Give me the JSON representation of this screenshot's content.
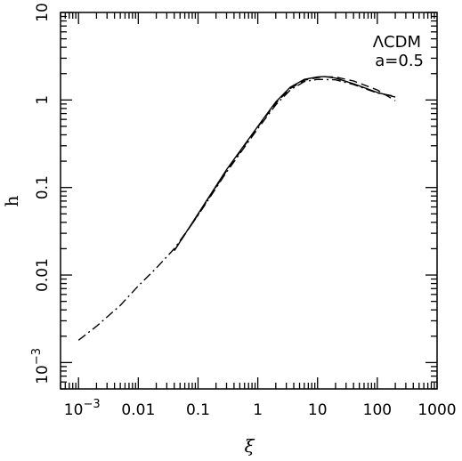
{
  "chart_data": {
    "type": "line",
    "title": "",
    "xlabel": "ξ",
    "ylabel": "h",
    "x_scale": "log",
    "y_scale": "log",
    "xlim": [
      0.0005,
      1000
    ],
    "ylim": [
      0.0005,
      10
    ],
    "grid": false,
    "legend": "none",
    "annotations": [
      "ΛCDM",
      "a=0.5"
    ],
    "x_ticks": [
      {
        "value": 0.001,
        "mantissa": "10",
        "exponent": "−3"
      },
      {
        "value": 0.01,
        "label": "0.01"
      },
      {
        "value": 0.1,
        "label": "0.1"
      },
      {
        "value": 1,
        "label": "1"
      },
      {
        "value": 10,
        "label": "10"
      },
      {
        "value": 100,
        "label": "100"
      },
      {
        "value": 1000,
        "label": "1000"
      }
    ],
    "y_ticks": [
      {
        "value": 0.001,
        "mantissa": "10",
        "exponent": "−3"
      },
      {
        "value": 0.01,
        "label": "0.01"
      },
      {
        "value": 0.1,
        "label": "0.1"
      },
      {
        "value": 1,
        "label": "1"
      },
      {
        "value": 10,
        "label": "10"
      }
    ],
    "series": [
      {
        "style": "solid",
        "x": [
          0.04,
          0.1,
          0.3,
          1,
          2,
          3.5,
          6,
          10,
          13,
          20,
          40,
          100,
          200
        ],
        "y": [
          0.019,
          0.05,
          0.16,
          0.5,
          0.95,
          1.4,
          1.72,
          1.83,
          1.85,
          1.78,
          1.53,
          1.22,
          1.08
        ]
      },
      {
        "style": "dashed",
        "x": [
          0.04,
          0.1,
          0.3,
          1,
          2,
          3.5,
          6,
          10,
          13,
          20,
          40,
          100,
          200
        ],
        "y": [
          0.019,
          0.049,
          0.155,
          0.49,
          0.92,
          1.35,
          1.68,
          1.8,
          1.84,
          1.83,
          1.65,
          1.3,
          0.98
        ]
      },
      {
        "style": "dash-dot",
        "x": [
          0.001,
          0.002,
          0.005,
          0.01,
          0.02,
          0.04,
          0.1,
          0.3,
          1,
          2,
          3.5,
          6,
          10,
          20,
          40,
          100,
          200
        ],
        "y": [
          0.0018,
          0.0026,
          0.0045,
          0.0075,
          0.012,
          0.02,
          0.048,
          0.15,
          0.47,
          0.88,
          1.3,
          1.62,
          1.72,
          1.7,
          1.5,
          1.2,
          1.1
        ]
      }
    ]
  }
}
